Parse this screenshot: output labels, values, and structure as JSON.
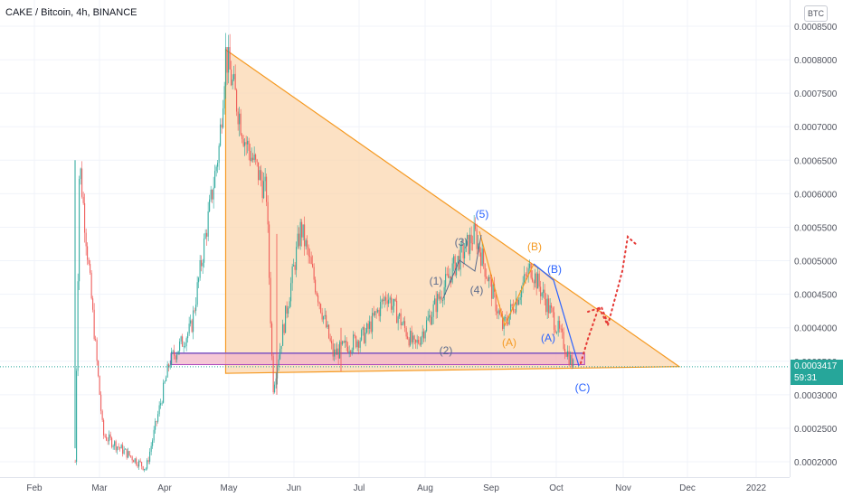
{
  "header": {
    "title": "CAKE / Bitcoin, 4h, BINANCE",
    "currency_button": "BTC"
  },
  "price_tag": {
    "price": "0.0003417",
    "countdown": "59:31",
    "color": "#26a69a"
  },
  "chart_data": {
    "type": "candlestick",
    "title": "CAKE / Bitcoin, 4h, BINANCE",
    "y_axis_ticks": [
      "0.0008500",
      "0.0008000",
      "0.0007500",
      "0.0007000",
      "0.0006500",
      "0.0006000",
      "0.0005500",
      "0.0005000",
      "0.0004500",
      "0.0004000",
      "0.0003500",
      "0.0003000",
      "0.0002500",
      "0.0002000"
    ],
    "x_axis_ticks": [
      "Feb",
      "Mar",
      "Apr",
      "May",
      "Jun",
      "Jul",
      "Aug",
      "Sep",
      "Oct",
      "Nov",
      "Dec",
      "2022"
    ],
    "ylim": [
      0.000195,
      0.00086
    ],
    "last_price": 0.0003417,
    "colors": {
      "up": "#26a69a",
      "down": "#ef5350",
      "triangle": "#f59a23",
      "triangle_fill": "#fbd7b0",
      "support_zone": "#e1bee7",
      "support_line": "#7e57c2",
      "projection": "#e53935"
    },
    "approx_price_path": [
      {
        "date": "Feb 20",
        "price": 0.0002
      },
      {
        "date": "Feb 22",
        "price": 0.00065
      },
      {
        "date": "Mar 5",
        "price": 0.00024
      },
      {
        "date": "Mar 25",
        "price": 0.00019
      },
      {
        "date": "Apr 5",
        "price": 0.00035
      },
      {
        "date": "Apr 15",
        "price": 0.0004
      },
      {
        "date": "Apr 28",
        "price": 0.00067
      },
      {
        "date": "May 1",
        "price": 0.00081
      },
      {
        "date": "May 10",
        "price": 0.00068
      },
      {
        "date": "May 20",
        "price": 0.0006
      },
      {
        "date": "May 23",
        "price": 0.00031
      },
      {
        "date": "Jun 5",
        "price": 0.00055
      },
      {
        "date": "Jun 20",
        "price": 0.00036
      },
      {
        "date": "Jul 5",
        "price": 0.00039
      },
      {
        "date": "Jul 15",
        "price": 0.00045
      },
      {
        "date": "Jul 28",
        "price": 0.00037
      },
      {
        "date": "Aug 15",
        "price": 0.00049
      },
      {
        "date": "Aug 25",
        "price": 0.00054
      },
      {
        "date": "Sep 7",
        "price": 0.0004
      },
      {
        "date": "Sep 20",
        "price": 0.00049
      },
      {
        "date": "Oct 1",
        "price": 0.00041
      },
      {
        "date": "Oct 10",
        "price": 0.00034
      }
    ],
    "triangle_resistance": [
      {
        "date": "May 1",
        "price": 0.000815
      },
      {
        "date": "Nov 28",
        "price": 0.000342
      }
    ],
    "triangle_support": [
      {
        "date": "May 1",
        "price": 0.000332
      },
      {
        "date": "Nov 28",
        "price": 0.000342
      }
    ],
    "support_zone": {
      "from": "Apr 10",
      "to": "Oct 15",
      "low": 0.000345,
      "high": 0.000362
    },
    "projection_path": [
      {
        "date": "Oct 10",
        "price": 0.00034
      },
      {
        "date": "Oct 20",
        "price": 0.00043
      },
      {
        "date": "Oct 25",
        "price": 0.00041
      },
      {
        "date": "Nov 5",
        "price": 0.00055
      }
    ],
    "wave_labels": [
      {
        "text": "(1)",
        "color": "#5b6b8c"
      },
      {
        "text": "(2)",
        "color": "#5b6b8c"
      },
      {
        "text": "(3)",
        "color": "#5b6b8c"
      },
      {
        "text": "(4)",
        "color": "#5b6b8c"
      },
      {
        "text": "(5)",
        "color": "#2962ff"
      },
      {
        "text": "(A)",
        "color": "#f59a23"
      },
      {
        "text": "(B)",
        "color": "#f59a23"
      },
      {
        "text": "(B)",
        "color": "#2962ff"
      },
      {
        "text": "(A)",
        "color": "#2962ff"
      },
      {
        "text": "(C)",
        "color": "#2962ff"
      }
    ]
  }
}
